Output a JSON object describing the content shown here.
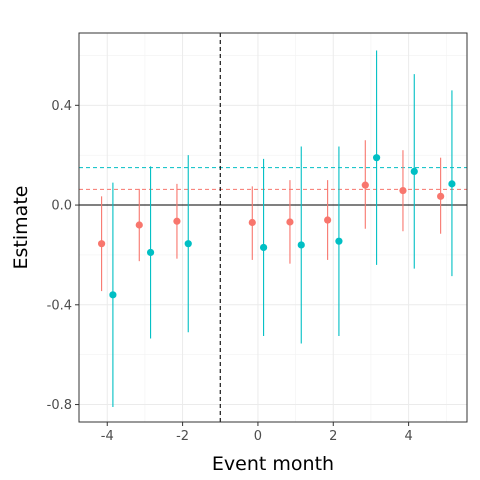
{
  "chart_data": {
    "type": "scatter",
    "title": "",
    "xlabel": "Event month",
    "ylabel": "Estimate",
    "xlim": [
      -4.75,
      5.55
    ],
    "ylim": [
      -0.87,
      0.69
    ],
    "x_ticks": [
      -4,
      -2,
      0,
      2,
      4
    ],
    "x_tick_labels": [
      "-4",
      "-2",
      "0",
      "2",
      "4"
    ],
    "y_ticks": [
      -0.8,
      -0.4,
      0.0,
      0.4
    ],
    "y_tick_labels": [
      "-0.8",
      "-0.4",
      "0.0",
      "0.4"
    ],
    "grid": true,
    "legend": "none",
    "zero_line": 0.0,
    "event_line_x": -1,
    "series": [
      {
        "color": "#F8766D",
        "mean_line": 0.063,
        "points": [
          {
            "x": -4.15,
            "y": -0.155,
            "lo": -0.345,
            "hi": 0.035
          },
          {
            "x": -3.15,
            "y": -0.08,
            "lo": -0.225,
            "hi": 0.065
          },
          {
            "x": -2.15,
            "y": -0.065,
            "lo": -0.215,
            "hi": 0.085
          },
          {
            "x": -0.15,
            "y": -0.07,
            "lo": -0.22,
            "hi": 0.075
          },
          {
            "x": 0.85,
            "y": -0.068,
            "lo": -0.235,
            "hi": 0.1
          },
          {
            "x": 1.85,
            "y": -0.06,
            "lo": -0.22,
            "hi": 0.1
          },
          {
            "x": 2.85,
            "y": 0.08,
            "lo": -0.095,
            "hi": 0.26
          },
          {
            "x": 3.85,
            "y": 0.058,
            "lo": -0.105,
            "hi": 0.22
          },
          {
            "x": 4.85,
            "y": 0.035,
            "lo": -0.115,
            "hi": 0.19
          }
        ]
      },
      {
        "color": "#00BFC4",
        "mean_line": 0.15,
        "points": [
          {
            "x": -3.85,
            "y": -0.36,
            "lo": -0.81,
            "hi": 0.09
          },
          {
            "x": -2.85,
            "y": -0.19,
            "lo": -0.535,
            "hi": 0.155
          },
          {
            "x": -1.85,
            "y": -0.155,
            "lo": -0.51,
            "hi": 0.2
          },
          {
            "x": 0.15,
            "y": -0.17,
            "lo": -0.525,
            "hi": 0.185
          },
          {
            "x": 1.15,
            "y": -0.16,
            "lo": -0.555,
            "hi": 0.235
          },
          {
            "x": 2.15,
            "y": -0.145,
            "lo": -0.525,
            "hi": 0.235
          },
          {
            "x": 3.15,
            "y": 0.19,
            "lo": -0.24,
            "hi": 0.62
          },
          {
            "x": 4.15,
            "y": 0.135,
            "lo": -0.255,
            "hi": 0.525
          },
          {
            "x": 5.15,
            "y": 0.085,
            "lo": -0.285,
            "hi": 0.46
          }
        ]
      }
    ]
  }
}
